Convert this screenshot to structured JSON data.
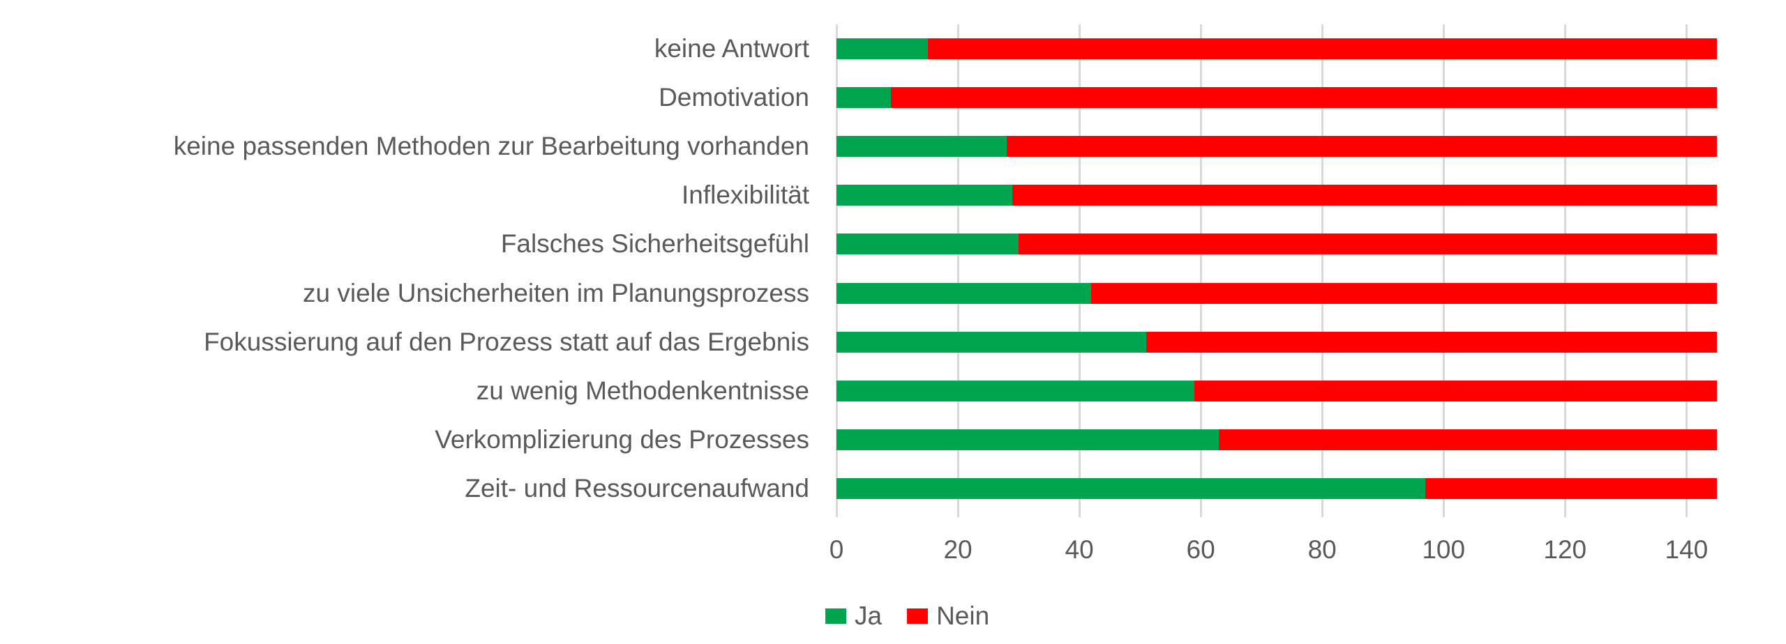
{
  "chart_data": {
    "type": "bar",
    "orientation": "horizontal",
    "stacked": true,
    "title": "",
    "xlabel": "",
    "ylabel": "",
    "categories": [
      "keine Antwort",
      "Demotivation",
      "keine passenden Methoden zur Bearbeitung vorhanden",
      "Inflexibilität",
      "Falsches Sicherheitsgefühl",
      "zu viele Unsicherheiten im Planungsprozess",
      "Fokussierung auf den Prozess statt auf das Ergebnis",
      "zu wenig Methodenkentnisse",
      "Verkomplizierung des Prozesses",
      "Zeit- und Ressourcenaufwand"
    ],
    "series": [
      {
        "name": "Ja",
        "color": "#00A550",
        "values": [
          15,
          9,
          28,
          29,
          30,
          42,
          51,
          59,
          63,
          97
        ]
      },
      {
        "name": "Nein",
        "color": "#FE0000",
        "values": [
          130,
          136,
          117,
          116,
          115,
          103,
          94,
          86,
          82,
          48
        ]
      }
    ],
    "total_per_category": 145,
    "xlim": [
      0,
      145.25
    ],
    "xticks": [
      0,
      20,
      40,
      60,
      80,
      100,
      120,
      140
    ],
    "grid": true,
    "legend_position": "bottom"
  },
  "colors": {
    "ja_green": "#00A550",
    "nein_red": "#FE0000",
    "gridline": "#D9D9D9",
    "text": "#595959",
    "background": "#FFFFFF"
  }
}
